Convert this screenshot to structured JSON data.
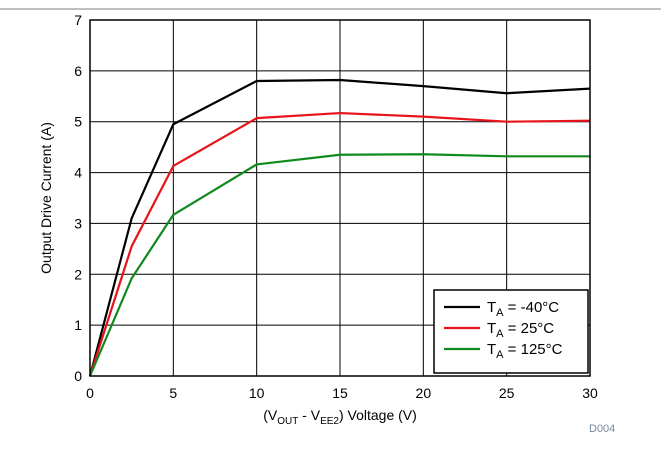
{
  "figure_id": "D004",
  "chart_data": {
    "type": "line",
    "title": "",
    "xlabel": {
      "open": "(V",
      "sub1": "OUT",
      "mid": " - V",
      "sub2": "EE2",
      "close": ") Voltage (V)"
    },
    "ylabel": "Output Drive Current (A)",
    "xlim": [
      0,
      30
    ],
    "ylim": [
      0,
      7
    ],
    "xticks": [
      "0",
      "5",
      "10",
      "15",
      "20",
      "25",
      "30"
    ],
    "yticks": [
      "0",
      "1",
      "2",
      "3",
      "4",
      "5",
      "6",
      "7"
    ],
    "grid": true,
    "legend_position": "bottom-right",
    "series": [
      {
        "name": {
          "pre": "T",
          "sub": "A",
          "post": " = -40°C"
        },
        "color": "#000000",
        "x": [
          0,
          2.5,
          5,
          10,
          15,
          20,
          25,
          30
        ],
        "y": [
          0,
          3.1,
          4.95,
          5.8,
          5.82,
          5.7,
          5.56,
          5.65
        ]
      },
      {
        "name": {
          "pre": "T",
          "sub": "A",
          "post": " = 25°C"
        },
        "color": "#e8131b",
        "x": [
          0,
          2.5,
          5,
          10,
          15,
          20,
          25,
          30
        ],
        "y": [
          0,
          2.55,
          4.13,
          5.07,
          5.17,
          5.1,
          5.0,
          5.02
        ]
      },
      {
        "name": {
          "pre": "T",
          "sub": "A",
          "post": " = 125°C"
        },
        "color": "#108a1e",
        "x": [
          0,
          2.5,
          5,
          10,
          15,
          20,
          25,
          30
        ],
        "y": [
          0,
          1.92,
          3.17,
          4.16,
          4.35,
          4.36,
          4.32,
          4.32
        ]
      }
    ]
  }
}
